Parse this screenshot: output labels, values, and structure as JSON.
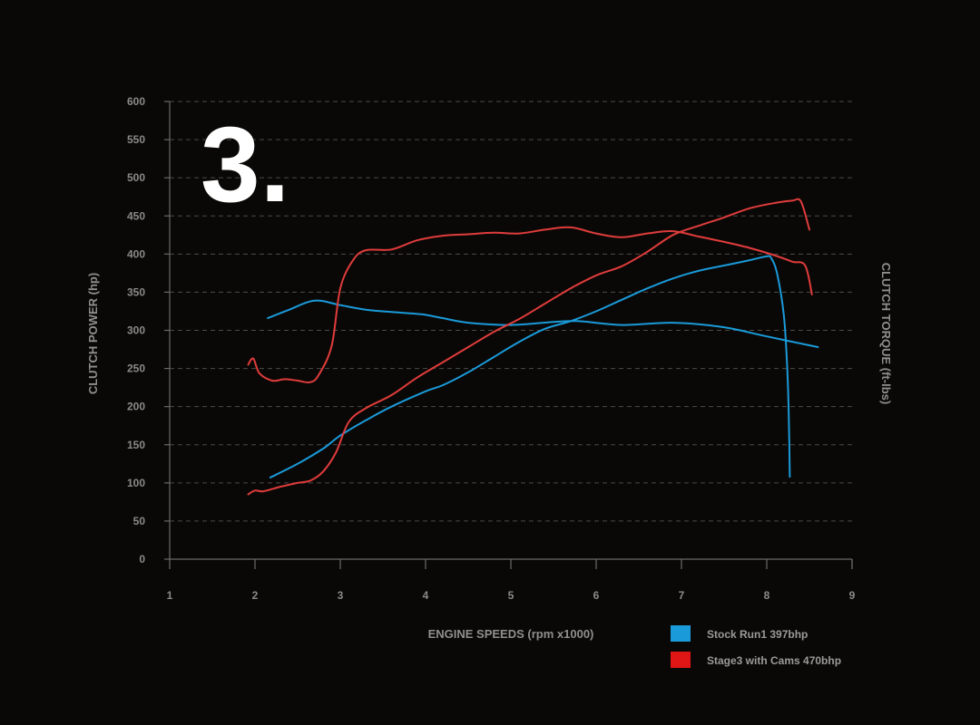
{
  "logo_text": "3.",
  "colors": {
    "stock": "#1a9ad9",
    "stage3": "#e03c3c",
    "background": "#0a0806"
  },
  "chart_data": {
    "type": "line",
    "xlabel": "ENGINE SPEEDS (rpm x1000)",
    "ylabel": "CLUTCH POWER (hp)",
    "y2label": "CLUTCH TORQUE (ft-lbs)",
    "xlim": [
      1,
      9
    ],
    "ylim": [
      0,
      600
    ],
    "x_ticks": [
      1,
      2,
      3,
      4,
      5,
      6,
      7,
      8,
      9
    ],
    "y_ticks": [
      0,
      50,
      100,
      150,
      200,
      250,
      300,
      350,
      400,
      450,
      500,
      550,
      600
    ],
    "grid": true,
    "legend_position": "bottom-right",
    "series": [
      {
        "name": "Stock Run1 397bhp",
        "color": "#1a9ad9",
        "kind": "power",
        "points": [
          [
            2.18,
            107
          ],
          [
            2.5,
            125
          ],
          [
            2.8,
            145
          ],
          [
            3.0,
            162
          ],
          [
            3.3,
            182
          ],
          [
            3.6,
            200
          ],
          [
            4.0,
            220
          ],
          [
            4.2,
            228
          ],
          [
            4.5,
            245
          ],
          [
            4.8,
            265
          ],
          [
            5.1,
            285
          ],
          [
            5.4,
            302
          ],
          [
            5.7,
            312
          ],
          [
            6.0,
            325
          ],
          [
            6.3,
            340
          ],
          [
            6.6,
            355
          ],
          [
            6.9,
            368
          ],
          [
            7.2,
            378
          ],
          [
            7.5,
            385
          ],
          [
            7.8,
            392
          ],
          [
            8.0,
            397
          ],
          [
            8.05,
            395
          ],
          [
            8.12,
            375
          ],
          [
            8.2,
            320
          ],
          [
            8.24,
            250
          ],
          [
            8.26,
            180
          ],
          [
            8.27,
            108
          ]
        ]
      },
      {
        "name": "Stock Run1 397bhp",
        "color": "#1a9ad9",
        "kind": "torque",
        "points": [
          [
            2.15,
            316
          ],
          [
            2.4,
            327
          ],
          [
            2.7,
            339
          ],
          [
            3.0,
            333
          ],
          [
            3.3,
            327
          ],
          [
            3.6,
            324
          ],
          [
            3.95,
            321
          ],
          [
            4.2,
            316
          ],
          [
            4.5,
            310
          ],
          [
            5.0,
            307
          ],
          [
            5.5,
            311
          ],
          [
            5.8,
            312
          ],
          [
            6.3,
            307
          ],
          [
            6.9,
            310
          ],
          [
            7.5,
            304
          ],
          [
            8.0,
            292
          ],
          [
            8.6,
            278
          ]
        ]
      },
      {
        "name": "Stage3 with Cams 470bhp",
        "color": "#e03c3c",
        "kind": "power",
        "points": [
          [
            1.92,
            85
          ],
          [
            2.0,
            90
          ],
          [
            2.1,
            89
          ],
          [
            2.3,
            95
          ],
          [
            2.5,
            100
          ],
          [
            2.65,
            103
          ],
          [
            2.8,
            115
          ],
          [
            2.95,
            140
          ],
          [
            3.1,
            180
          ],
          [
            3.3,
            198
          ],
          [
            3.6,
            215
          ],
          [
            3.9,
            238
          ],
          [
            4.2,
            258
          ],
          [
            4.5,
            278
          ],
          [
            4.8,
            298
          ],
          [
            5.1,
            315
          ],
          [
            5.4,
            335
          ],
          [
            5.7,
            355
          ],
          [
            6.0,
            372
          ],
          [
            6.3,
            384
          ],
          [
            6.6,
            403
          ],
          [
            6.9,
            425
          ],
          [
            7.2,
            437
          ],
          [
            7.5,
            448
          ],
          [
            7.8,
            460
          ],
          [
            8.1,
            467
          ],
          [
            8.3,
            470
          ],
          [
            8.4,
            469
          ],
          [
            8.5,
            432
          ]
        ]
      },
      {
        "name": "Stage3 with Cams 470bhp",
        "color": "#e03c3c",
        "kind": "torque",
        "points": [
          [
            1.92,
            255
          ],
          [
            1.98,
            263
          ],
          [
            2.05,
            244
          ],
          [
            2.2,
            234
          ],
          [
            2.35,
            236
          ],
          [
            2.5,
            234
          ],
          [
            2.65,
            232
          ],
          [
            2.75,
            242
          ],
          [
            2.9,
            280
          ],
          [
            3.0,
            355
          ],
          [
            3.15,
            392
          ],
          [
            3.3,
            405
          ],
          [
            3.6,
            406
          ],
          [
            3.9,
            418
          ],
          [
            4.2,
            424
          ],
          [
            4.5,
            426
          ],
          [
            4.8,
            428
          ],
          [
            5.1,
            427
          ],
          [
            5.4,
            432
          ],
          [
            5.7,
            435
          ],
          [
            6.0,
            427
          ],
          [
            6.3,
            422
          ],
          [
            6.6,
            427
          ],
          [
            6.9,
            430
          ],
          [
            7.2,
            423
          ],
          [
            7.5,
            416
          ],
          [
            7.8,
            408
          ],
          [
            8.1,
            398
          ],
          [
            8.3,
            390
          ],
          [
            8.45,
            385
          ],
          [
            8.53,
            347
          ]
        ]
      }
    ]
  }
}
